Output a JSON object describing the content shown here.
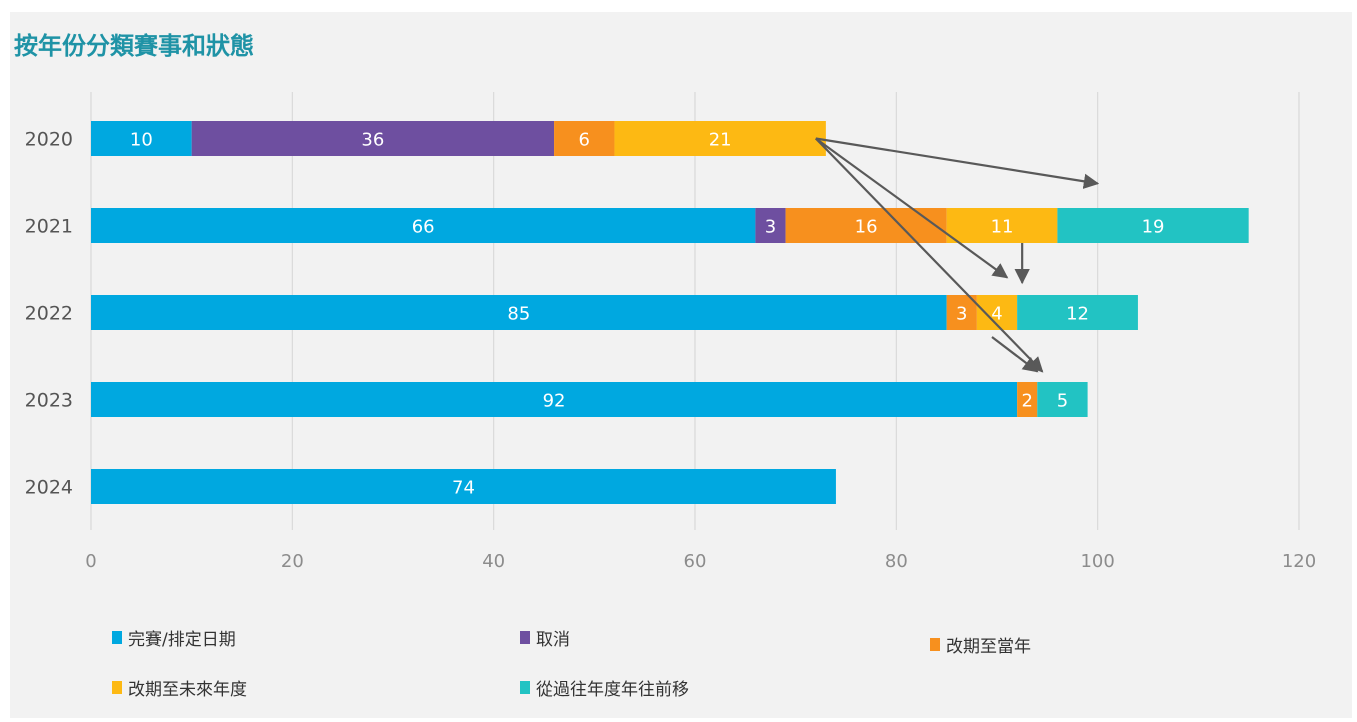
{
  "title": "按年份分類賽事和狀態",
  "colors": {
    "title": "#1f93a6",
    "grid": "#d9d9d9",
    "arrow": "#595959",
    "tick": "#8c8c8c",
    "label": "#ffffff"
  },
  "chart_data": {
    "type": "bar",
    "orientation": "horizontal",
    "stacked": true,
    "title": "按年份分類賽事和狀態",
    "categories": [
      "2020",
      "2021",
      "2022",
      "2023",
      "2024"
    ],
    "xlim": [
      0,
      120
    ],
    "xticks": [
      0,
      20,
      40,
      60,
      80,
      100,
      120
    ],
    "grid": true,
    "legend_position": "bottom",
    "series": [
      {
        "name": "完賽/排定日期",
        "color": "#00a8e0",
        "values": [
          10,
          66,
          85,
          92,
          74
        ]
      },
      {
        "name": "取消",
        "color": "#6e4fa0",
        "values": [
          36,
          3,
          0,
          0,
          0
        ]
      },
      {
        "name": "改期至當年",
        "color": "#f7901e",
        "values": [
          6,
          16,
          3,
          2,
          0
        ]
      },
      {
        "name": "改期至未來年度",
        "color": "#fdb913",
        "values": [
          21,
          11,
          4,
          0,
          0
        ]
      },
      {
        "name": "從過往年度年往前移",
        "color": "#22c3c3",
        "values": [
          0,
          19,
          12,
          5,
          0
        ]
      }
    ]
  }
}
